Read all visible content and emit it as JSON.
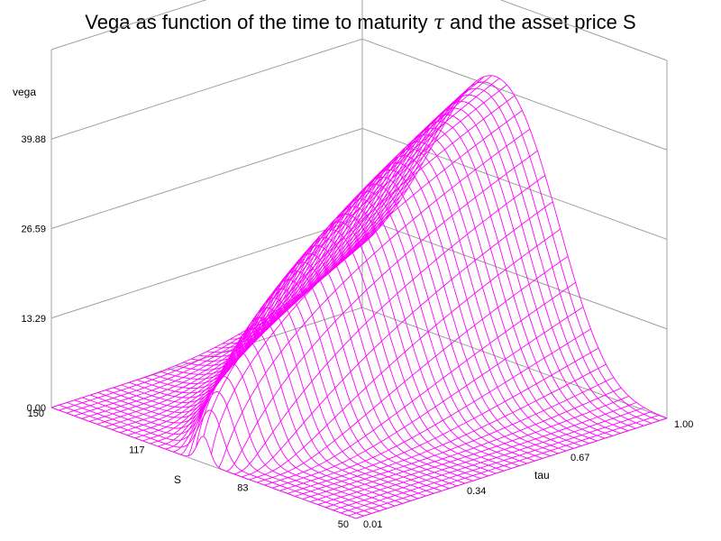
{
  "chart_data": {
    "type": "surface",
    "title": {
      "prefix": "Vega as function of the time to maturity ",
      "symbol": "𝜏",
      "suffix": " and the asset price S"
    },
    "z_axis": {
      "label": "vega",
      "ticks": [
        "0.00",
        "13.29",
        "26.59",
        "39.88"
      ],
      "range": [
        0,
        53.17
      ]
    },
    "s_axis": {
      "label": "S",
      "ticks": [
        "150",
        "117",
        "83",
        "50"
      ],
      "range": [
        50,
        150
      ]
    },
    "tau_axis": {
      "label": "tau",
      "ticks": [
        "0.01",
        "0.34",
        "0.67",
        "1.00"
      ],
      "range": [
        0.01,
        1.0
      ]
    },
    "model": {
      "strike": 100,
      "sigma": 0.2,
      "rate": 0.0,
      "vega_scale": 0.01
    },
    "mesh": {
      "s_steps": 40,
      "tau_steps": 40
    },
    "colors": {
      "mesh": "#ff00ff",
      "grid": "#a0a0a0"
    }
  }
}
